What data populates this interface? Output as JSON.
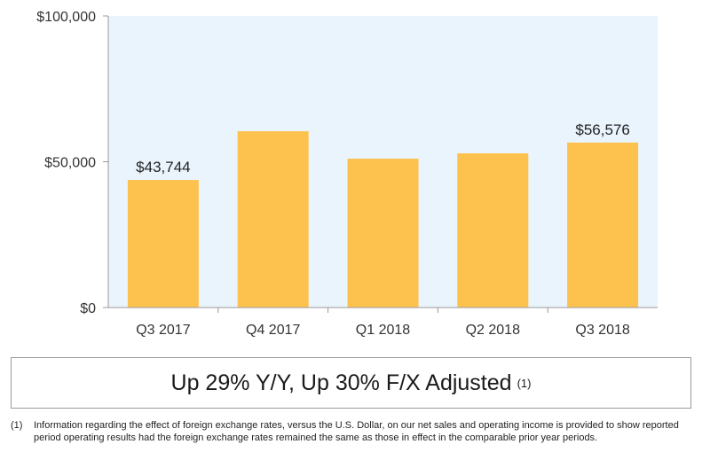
{
  "chart_data": {
    "type": "bar",
    "categories": [
      "Q3 2017",
      "Q4 2017",
      "Q1 2018",
      "Q2 2018",
      "Q3 2018"
    ],
    "values": [
      43744,
      60453,
      51042,
      52886,
      56576
    ],
    "data_labels": [
      "$43,744",
      "",
      "",
      "",
      "$56,576"
    ],
    "y_ticks": [
      {
        "value": 0,
        "label": "$0"
      },
      {
        "value": 50000,
        "label": "$50,000"
      },
      {
        "value": 100000,
        "label": "$100,000"
      }
    ],
    "ylim": [
      0,
      100000
    ],
    "grid": false,
    "colors": {
      "bar": "#FDC14D",
      "plot_background": "#EAF4FD",
      "axis": "#9a9a9a"
    }
  },
  "callout": {
    "text": "Up 29% Y/Y, Up 30% F/X Adjusted",
    "note": "(1)"
  },
  "footnote": {
    "marker": "(1)",
    "text": "Information regarding the effect of foreign exchange rates, versus the U.S. Dollar, on our net sales and operating income is provided to show reported period operating results had the foreign exchange rates remained the same as those in effect in the comparable prior year periods."
  }
}
